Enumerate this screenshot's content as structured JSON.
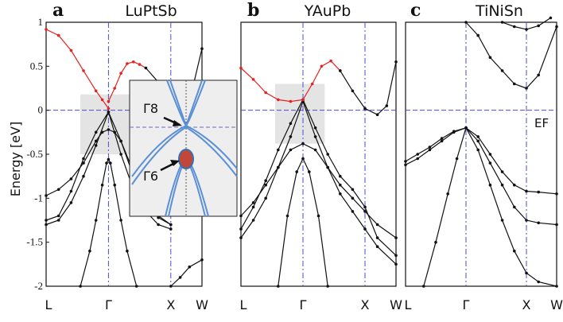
{
  "figure": {
    "ylabel": "Energy [eV]",
    "inset_labels": [
      "Γ8",
      "Γ6"
    ],
    "fermi_label": "EF"
  },
  "chart_data": [
    {
      "type": "line",
      "panel": "a",
      "title": "LuPtSb",
      "ylabel": "Energy [eV]",
      "ylim": [
        -2,
        1
      ],
      "yticks": [
        1,
        0.5,
        0,
        -0.5,
        -1,
        -1.5,
        -2
      ],
      "xticks": [
        "L",
        "Γ",
        "X",
        "W"
      ],
      "kpath": [
        0,
        1,
        2,
        2.5
      ],
      "series": [
        {
          "color": "#111111",
          "x": [
            0,
            0.2,
            0.4,
            0.6,
            0.8,
            1.0,
            1.2,
            1.4,
            1.6,
            1.8,
            2.0
          ],
          "y": [
            -1.25,
            -1.2,
            -0.92,
            -0.55,
            -0.25,
            -0.02,
            -0.35,
            -0.75,
            -1.05,
            -1.22,
            -1.3
          ]
        },
        {
          "color": "#111111",
          "x": [
            0,
            0.2,
            0.4,
            0.6,
            0.8,
            1.0,
            1.2,
            1.4,
            1.6,
            1.8,
            2.0
          ],
          "y": [
            -1.3,
            -1.25,
            -1.05,
            -0.75,
            -0.4,
            -0.02,
            -0.5,
            -0.9,
            -1.15,
            -1.3,
            -1.35
          ]
        },
        {
          "color": "#111111",
          "x": [
            0,
            0.2,
            0.4,
            0.6,
            0.8,
            0.9,
            1.0,
            1.1,
            1.2,
            1.4,
            1.6,
            1.8,
            2.0
          ],
          "y": [
            -0.97,
            -0.9,
            -0.78,
            -0.6,
            -0.35,
            -0.25,
            -0.22,
            -0.25,
            -0.35,
            -0.7,
            -1.0,
            -1.2,
            -1.3
          ]
        },
        {
          "color": "#111111",
          "x": [
            0.55,
            0.7,
            0.8,
            0.9,
            0.97,
            1.0,
            1.03,
            1.1,
            1.2,
            1.3,
            1.45
          ],
          "y": [
            -2.0,
            -1.6,
            -1.25,
            -0.85,
            -0.6,
            -0.56,
            -0.6,
            -0.85,
            -1.25,
            -1.6,
            -2.0
          ]
        },
        {
          "color": "#e52222",
          "x": [
            0,
            0.2,
            0.4,
            0.6,
            0.8,
            0.9,
            1.0
          ],
          "y": [
            0.92,
            0.85,
            0.68,
            0.45,
            0.22,
            0.12,
            0.02
          ]
        },
        {
          "color": "#e52222",
          "x": [
            1.0,
            1.1,
            1.2,
            1.3,
            1.4,
            1.5,
            1.6
          ],
          "y": [
            0.1,
            0.25,
            0.42,
            0.53,
            0.55,
            0.52,
            0.48
          ]
        },
        {
          "color": "#111111",
          "x": [
            1.6,
            1.8,
            2.0,
            2.2,
            2.35,
            2.5
          ],
          "y": [
            0.48,
            0.32,
            0.15,
            0.05,
            0.25,
            0.7
          ]
        },
        {
          "color": "#111111",
          "x": [
            2.0,
            2.15,
            2.3,
            2.5
          ],
          "y": [
            -2.0,
            -1.9,
            -1.78,
            -1.7
          ]
        }
      ],
      "vlines": [
        "Γ",
        "X"
      ],
      "hline": 0,
      "highlight": {
        "x": [
          0.55,
          1.35
        ],
        "y": [
          -0.5,
          0.18
        ]
      }
    },
    {
      "type": "line",
      "panel": "b",
      "title": "YAuPb",
      "ylim": [
        -2,
        1
      ],
      "xticks": [
        "L",
        "Γ",
        "X",
        "W"
      ],
      "kpath": [
        0,
        1,
        2,
        2.5
      ],
      "series": [
        {
          "color": "#111111",
          "x": [
            0,
            0.2,
            0.4,
            0.6,
            0.8,
            1.0,
            1.2,
            1.4,
            1.6,
            1.8,
            2.0,
            2.2,
            2.5
          ],
          "y": [
            -1.35,
            -1.1,
            -0.8,
            -0.45,
            -0.15,
            0.12,
            -0.2,
            -0.5,
            -0.75,
            -0.9,
            -1.1,
            -1.45,
            -1.65
          ]
        },
        {
          "color": "#111111",
          "x": [
            0,
            0.2,
            0.4,
            0.6,
            0.8,
            1.0,
            1.2,
            1.4,
            1.6,
            1.8,
            2.0,
            2.2,
            2.5
          ],
          "y": [
            -1.45,
            -1.25,
            -1.0,
            -0.65,
            -0.3,
            0.1,
            -0.3,
            -0.65,
            -0.95,
            -1.15,
            -1.35,
            -1.55,
            -1.75
          ]
        },
        {
          "color": "#111111",
          "x": [
            0,
            0.2,
            0.4,
            0.6,
            0.8,
            1.0,
            1.2,
            1.4,
            1.6,
            1.8,
            2.0,
            2.2,
            2.5
          ],
          "y": [
            -1.2,
            -1.05,
            -0.85,
            -0.65,
            -0.45,
            -0.38,
            -0.45,
            -0.65,
            -0.85,
            -1.0,
            -1.15,
            -1.3,
            -1.45
          ]
        },
        {
          "color": "#111111",
          "x": [
            0.6,
            0.75,
            0.9,
            1.0,
            1.1,
            1.25,
            1.4
          ],
          "y": [
            -2.0,
            -1.2,
            -0.7,
            -0.55,
            -0.7,
            -1.2,
            -2.0
          ]
        },
        {
          "color": "#e52222",
          "x": [
            0,
            0.2,
            0.4,
            0.6,
            0.8,
            1.0
          ],
          "y": [
            0.48,
            0.35,
            0.2,
            0.12,
            0.1,
            0.12
          ]
        },
        {
          "color": "#e52222",
          "x": [
            1.0,
            1.15,
            1.3,
            1.45,
            1.6
          ],
          "y": [
            0.12,
            0.3,
            0.5,
            0.56,
            0.45
          ]
        },
        {
          "color": "#111111",
          "x": [
            1.6,
            1.8,
            2.0,
            2.2,
            2.35,
            2.5
          ],
          "y": [
            0.45,
            0.22,
            0.02,
            -0.05,
            0.05,
            0.55
          ]
        }
      ],
      "vlines": [
        "Γ",
        "X"
      ],
      "hline": 0,
      "highlight": {
        "x": [
          0.55,
          1.35
        ],
        "y": [
          -0.38,
          0.3
        ]
      }
    },
    {
      "type": "line",
      "panel": "c",
      "title": "TiNiSn",
      "ylim": [
        -2,
        1
      ],
      "xticks": [
        "L",
        "Γ",
        "X",
        "W"
      ],
      "kpath": [
        0,
        1,
        2,
        2.5
      ],
      "annotations": [
        "EF"
      ],
      "series": [
        {
          "color": "#111111",
          "x": [
            0,
            0.2,
            0.4,
            0.6,
            0.8,
            1.0,
            1.2,
            1.4,
            1.6,
            1.8,
            2.0,
            2.2,
            2.5
          ],
          "y": [
            -0.62,
            -0.55,
            -0.45,
            -0.35,
            -0.25,
            -0.2,
            -0.3,
            -0.5,
            -0.7,
            -0.85,
            -0.92,
            -0.93,
            -0.95
          ]
        },
        {
          "color": "#111111",
          "x": [
            0,
            0.2,
            0.4,
            0.6,
            0.8,
            1.0,
            1.2,
            1.4,
            1.6,
            1.8,
            2.0,
            2.2,
            2.5
          ],
          "y": [
            -0.58,
            -0.5,
            -0.42,
            -0.32,
            -0.24,
            -0.2,
            -0.35,
            -0.6,
            -0.85,
            -1.1,
            -1.25,
            -1.28,
            -1.3
          ]
        },
        {
          "color": "#111111",
          "x": [
            0.3,
            0.5,
            0.7,
            0.85,
            1.0,
            1.2,
            1.4,
            1.6,
            1.8,
            2.0,
            2.2,
            2.5
          ],
          "y": [
            -2.0,
            -1.5,
            -0.95,
            -0.55,
            -0.2,
            -0.45,
            -0.85,
            -1.25,
            -1.6,
            -1.85,
            -1.95,
            -2.0
          ]
        },
        {
          "color": "#111111",
          "x": [
            1.0,
            1.2,
            1.4,
            1.6,
            1.8,
            2.0,
            2.2,
            2.5
          ],
          "y": [
            1.0,
            0.85,
            0.6,
            0.45,
            0.3,
            0.25,
            0.4,
            0.95
          ]
        },
        {
          "color": "#111111",
          "x": [
            1.6,
            1.8,
            2.0,
            2.2,
            2.4
          ],
          "y": [
            1.0,
            0.95,
            0.92,
            0.96,
            1.05
          ]
        }
      ],
      "vlines": [
        "Γ",
        "X"
      ],
      "hline": 0
    }
  ]
}
